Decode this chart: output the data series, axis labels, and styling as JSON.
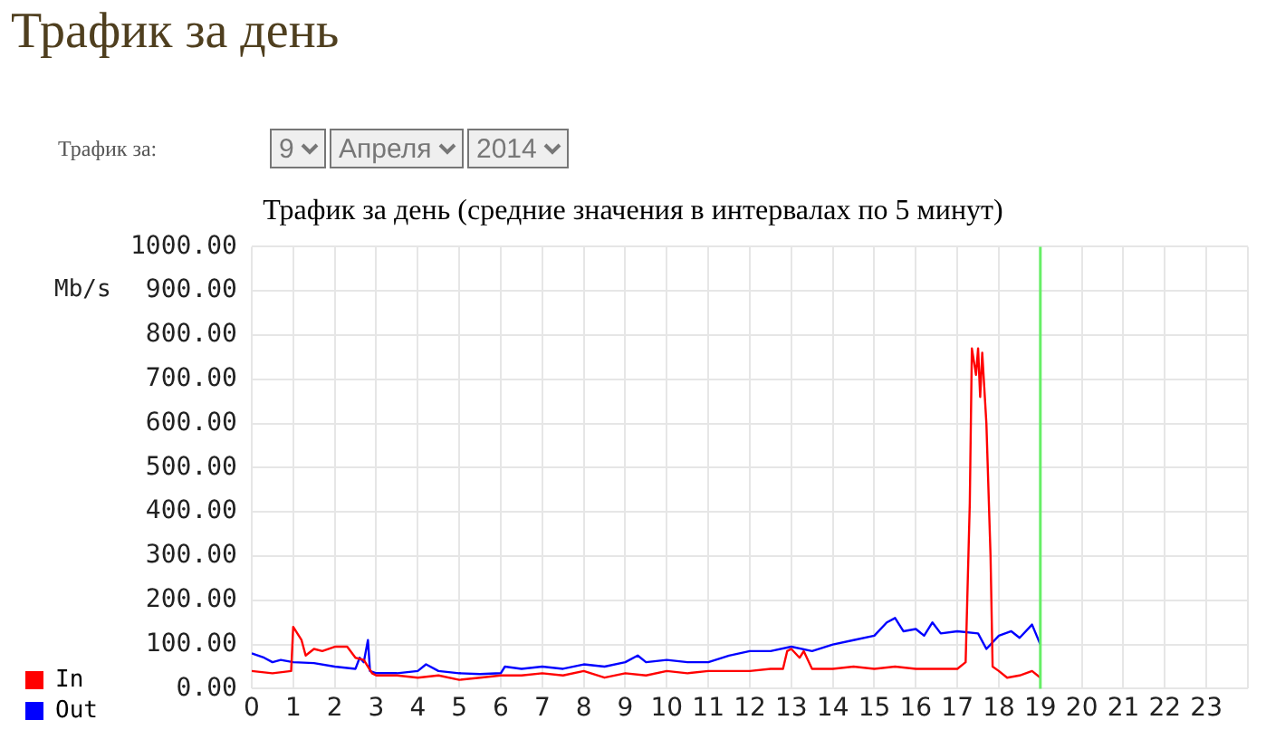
{
  "chart_data": {
    "type": "line",
    "title": "Трафик за день",
    "subtitle": "Трафик за день (средние значения в интервалах по 5 минут)",
    "ylabel": "Mb/s",
    "annotations": [
      "Трафик за:",
      "9",
      "Апреля",
      "2014"
    ],
    "xlim": [
      0,
      24
    ],
    "xticks": [
      0,
      1,
      2,
      3,
      4,
      5,
      6,
      7,
      8,
      9,
      10,
      11,
      12,
      13,
      14,
      15,
      16,
      17,
      18,
      19,
      20,
      21,
      22,
      23,
      {
        "value": 24,
        "label": null
      }
    ],
    "ylim": [
      0,
      1000
    ],
    "yticks": [
      {
        "value": 0,
        "label": "0.00"
      },
      {
        "value": 100,
        "label": "100.00"
      },
      {
        "value": 200,
        "label": "200.00"
      },
      {
        "value": 300,
        "label": "300.00"
      },
      {
        "value": 400,
        "label": "400.00"
      },
      {
        "value": 500,
        "label": "500.00"
      },
      {
        "value": 600,
        "label": "600.00"
      },
      {
        "value": 700,
        "label": "700.00"
      },
      {
        "value": 800,
        "label": "800.00"
      },
      {
        "value": 900,
        "label": "900.00"
      },
      {
        "value": 1000,
        "label": "1000.00"
      }
    ],
    "grid": true,
    "legend": "bottom left",
    "marker": "none",
    "line_style": "solid",
    "ref_lines": [
      {
        "axis": "x",
        "value": 19,
        "label": null,
        "color": "#66ee66"
      }
    ],
    "series": [
      {
        "name": "In",
        "color": "#ff0000",
        "x": [
          0,
          0.5,
          0.95,
          1,
          1.2,
          1.3,
          1.5,
          1.7,
          2,
          2.3,
          2.5,
          2.7,
          2.8,
          2.9,
          3,
          3.5,
          4,
          4.5,
          5,
          5.5,
          6,
          6.5,
          7,
          7.5,
          8,
          8.5,
          9,
          9.5,
          10,
          10.5,
          11,
          11.5,
          12,
          12.5,
          12.8,
          12.9,
          13,
          13.2,
          13.3,
          13.5,
          14,
          14.5,
          15,
          15.5,
          16,
          16.5,
          17,
          17.2,
          17.3,
          17.35,
          17.45,
          17.5,
          17.55,
          17.6,
          17.7,
          17.8,
          17.85,
          18,
          18.2,
          18.5,
          18.8,
          19
        ],
        "values": [
          40,
          35,
          40,
          140,
          110,
          75,
          90,
          85,
          95,
          95,
          70,
          65,
          50,
          35,
          30,
          30,
          25,
          30,
          20,
          25,
          30,
          30,
          35,
          30,
          40,
          25,
          35,
          30,
          40,
          35,
          40,
          40,
          40,
          45,
          45,
          85,
          90,
          70,
          85,
          45,
          45,
          50,
          45,
          50,
          45,
          45,
          45,
          60,
          420,
          770,
          710,
          770,
          660,
          760,
          600,
          300,
          50,
          40,
          25,
          30,
          40,
          25
        ]
      },
      {
        "name": "Out",
        "color": "#0000ff",
        "x": [
          0,
          0.3,
          0.5,
          0.7,
          1,
          1.5,
          2,
          2.5,
          2.6,
          2.7,
          2.8,
          2.85,
          3,
          3.5,
          4,
          4.2,
          4.5,
          5,
          5.5,
          6,
          6.1,
          6.5,
          7,
          7.5,
          8,
          8.5,
          9,
          9.3,
          9.5,
          10,
          10.5,
          11,
          11.5,
          12,
          12.5,
          13,
          13.5,
          14,
          14.5,
          15,
          15.3,
          15.5,
          15.7,
          16,
          16.2,
          16.4,
          16.6,
          17,
          17.5,
          17.7,
          18,
          18.3,
          18.5,
          18.8,
          19
        ],
        "values": [
          80,
          70,
          60,
          65,
          60,
          58,
          50,
          45,
          70,
          60,
          110,
          40,
          35,
          35,
          40,
          55,
          40,
          35,
          33,
          35,
          50,
          45,
          50,
          45,
          55,
          50,
          60,
          75,
          60,
          65,
          60,
          60,
          75,
          85,
          85,
          95,
          85,
          100,
          110,
          120,
          150,
          160,
          130,
          135,
          120,
          150,
          125,
          130,
          125,
          90,
          120,
          130,
          115,
          145,
          100
        ]
      }
    ]
  }
}
